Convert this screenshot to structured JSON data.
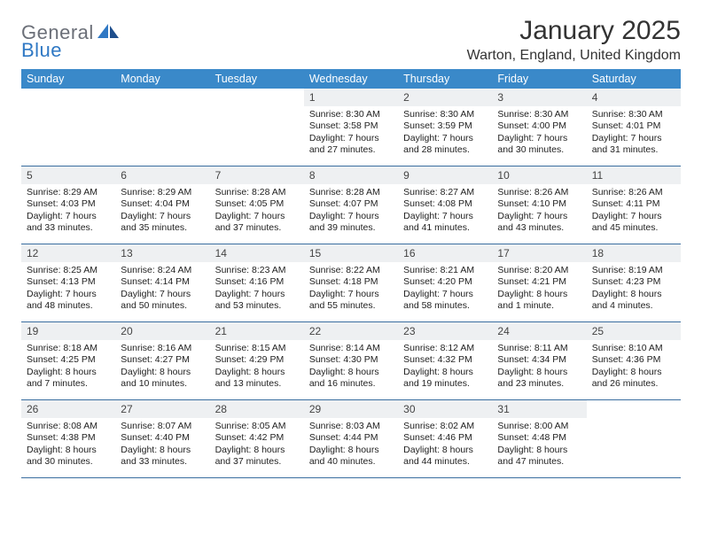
{
  "brand": {
    "part1": "General",
    "part2": "Blue"
  },
  "title": "January 2025",
  "location": "Warton, England, United Kingdom",
  "theme": {
    "header_band": "#3a89c9",
    "header_text": "#ffffff",
    "rule": "#3a6ea0",
    "daynum_bg": "#eef0f2",
    "page_bg": "#ffffff",
    "title_fontsize": 30,
    "location_fontsize": 16,
    "dayhead_fontsize": 12.5,
    "cell_fontsize": 10.5
  },
  "weekday_labels": [
    "Sunday",
    "Monday",
    "Tuesday",
    "Wednesday",
    "Thursday",
    "Friday",
    "Saturday"
  ],
  "grid": {
    "leading_blanks": 3,
    "num_days": 31
  },
  "days": {
    "1": {
      "sunrise": "8:30 AM",
      "sunset": "3:58 PM",
      "daylight": "7 hours and 27 minutes."
    },
    "2": {
      "sunrise": "8:30 AM",
      "sunset": "3:59 PM",
      "daylight": "7 hours and 28 minutes."
    },
    "3": {
      "sunrise": "8:30 AM",
      "sunset": "4:00 PM",
      "daylight": "7 hours and 30 minutes."
    },
    "4": {
      "sunrise": "8:30 AM",
      "sunset": "4:01 PM",
      "daylight": "7 hours and 31 minutes."
    },
    "5": {
      "sunrise": "8:29 AM",
      "sunset": "4:03 PM",
      "daylight": "7 hours and 33 minutes."
    },
    "6": {
      "sunrise": "8:29 AM",
      "sunset": "4:04 PM",
      "daylight": "7 hours and 35 minutes."
    },
    "7": {
      "sunrise": "8:28 AM",
      "sunset": "4:05 PM",
      "daylight": "7 hours and 37 minutes."
    },
    "8": {
      "sunrise": "8:28 AM",
      "sunset": "4:07 PM",
      "daylight": "7 hours and 39 minutes."
    },
    "9": {
      "sunrise": "8:27 AM",
      "sunset": "4:08 PM",
      "daylight": "7 hours and 41 minutes."
    },
    "10": {
      "sunrise": "8:26 AM",
      "sunset": "4:10 PM",
      "daylight": "7 hours and 43 minutes."
    },
    "11": {
      "sunrise": "8:26 AM",
      "sunset": "4:11 PM",
      "daylight": "7 hours and 45 minutes."
    },
    "12": {
      "sunrise": "8:25 AM",
      "sunset": "4:13 PM",
      "daylight": "7 hours and 48 minutes."
    },
    "13": {
      "sunrise": "8:24 AM",
      "sunset": "4:14 PM",
      "daylight": "7 hours and 50 minutes."
    },
    "14": {
      "sunrise": "8:23 AM",
      "sunset": "4:16 PM",
      "daylight": "7 hours and 53 minutes."
    },
    "15": {
      "sunrise": "8:22 AM",
      "sunset": "4:18 PM",
      "daylight": "7 hours and 55 minutes."
    },
    "16": {
      "sunrise": "8:21 AM",
      "sunset": "4:20 PM",
      "daylight": "7 hours and 58 minutes."
    },
    "17": {
      "sunrise": "8:20 AM",
      "sunset": "4:21 PM",
      "daylight": "8 hours and 1 minute."
    },
    "18": {
      "sunrise": "8:19 AM",
      "sunset": "4:23 PM",
      "daylight": "8 hours and 4 minutes."
    },
    "19": {
      "sunrise": "8:18 AM",
      "sunset": "4:25 PM",
      "daylight": "8 hours and 7 minutes."
    },
    "20": {
      "sunrise": "8:16 AM",
      "sunset": "4:27 PM",
      "daylight": "8 hours and 10 minutes."
    },
    "21": {
      "sunrise": "8:15 AM",
      "sunset": "4:29 PM",
      "daylight": "8 hours and 13 minutes."
    },
    "22": {
      "sunrise": "8:14 AM",
      "sunset": "4:30 PM",
      "daylight": "8 hours and 16 minutes."
    },
    "23": {
      "sunrise": "8:12 AM",
      "sunset": "4:32 PM",
      "daylight": "8 hours and 19 minutes."
    },
    "24": {
      "sunrise": "8:11 AM",
      "sunset": "4:34 PM",
      "daylight": "8 hours and 23 minutes."
    },
    "25": {
      "sunrise": "8:10 AM",
      "sunset": "4:36 PM",
      "daylight": "8 hours and 26 minutes."
    },
    "26": {
      "sunrise": "8:08 AM",
      "sunset": "4:38 PM",
      "daylight": "8 hours and 30 minutes."
    },
    "27": {
      "sunrise": "8:07 AM",
      "sunset": "4:40 PM",
      "daylight": "8 hours and 33 minutes."
    },
    "28": {
      "sunrise": "8:05 AM",
      "sunset": "4:42 PM",
      "daylight": "8 hours and 37 minutes."
    },
    "29": {
      "sunrise": "8:03 AM",
      "sunset": "4:44 PM",
      "daylight": "8 hours and 40 minutes."
    },
    "30": {
      "sunrise": "8:02 AM",
      "sunset": "4:46 PM",
      "daylight": "8 hours and 44 minutes."
    },
    "31": {
      "sunrise": "8:00 AM",
      "sunset": "4:48 PM",
      "daylight": "8 hours and 47 minutes."
    }
  },
  "labels": {
    "sunrise": "Sunrise:",
    "sunset": "Sunset:",
    "daylight": "Daylight:"
  }
}
